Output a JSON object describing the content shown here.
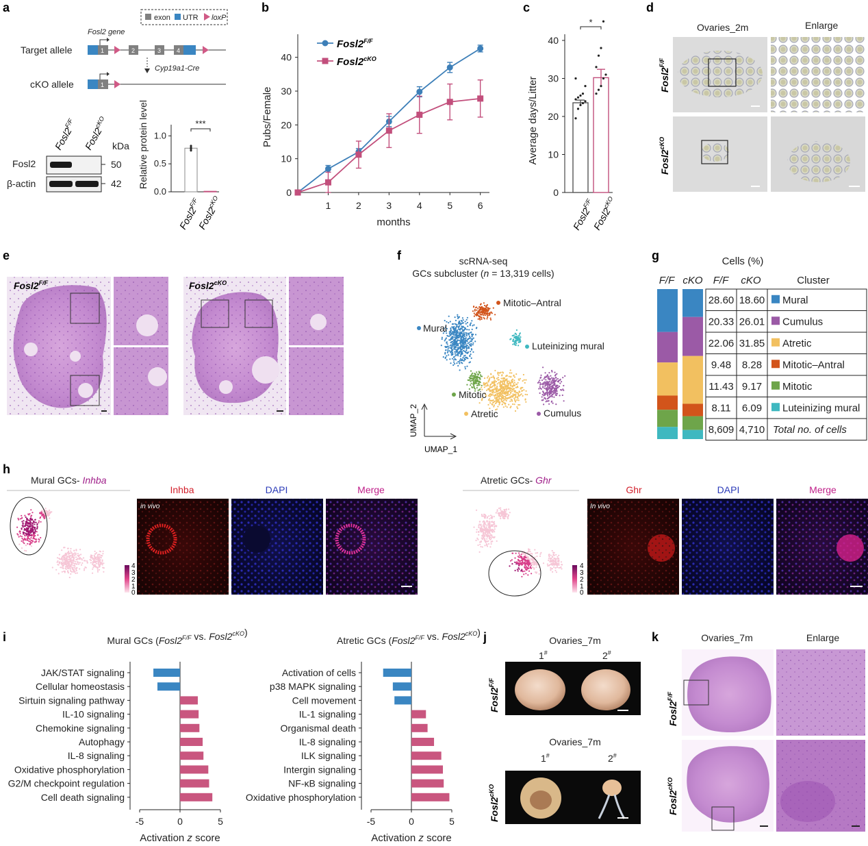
{
  "panels": {
    "a": "a",
    "b": "b",
    "c": "c",
    "d": "d",
    "e": "e",
    "f": "f",
    "g": "g",
    "h": "h",
    "i": "i",
    "j": "j",
    "k": "k"
  },
  "a": {
    "legend": {
      "exon": "exon",
      "utr": "UTR",
      "loxp": "loxP"
    },
    "gene_label": "Fosl2 gene",
    "target_allele": "Target allele",
    "cko_allele": "cKO allele",
    "cre": "Cyp19a1-Cre",
    "exons": [
      "1",
      "2",
      "3",
      "4"
    ],
    "blot": {
      "col1": "Fosl2",
      "col1_sup": "F/F",
      "col2": "Fosl2",
      "col2_sup": "cKO",
      "kda": "kDa",
      "rows": [
        {
          "name": "Fosl2",
          "size": "50"
        },
        {
          "name": "β-actin",
          "size": "42"
        }
      ]
    },
    "bar": {
      "ylabel": "Relative protein level",
      "yticks": [
        "0.0",
        "0.5",
        "1.0"
      ],
      "signif": "***",
      "cat1": "Fosl2",
      "cat1_sup": "F/F",
      "cat2": "Fosl2",
      "cat2_sup": "cKO",
      "values": [
        0.78,
        0.01
      ]
    }
  },
  "chart_data": [
    {
      "type": "line",
      "panel": "b",
      "xlabel": "months",
      "ylabel": "Pubs/Female",
      "x": [
        0,
        1,
        2,
        3,
        4,
        5,
        6
      ],
      "xtick_labels": [
        "1",
        "2",
        "3",
        "4",
        "5",
        "6"
      ],
      "ylim": [
        0,
        45
      ],
      "yticks": [
        "0",
        "10",
        "20",
        "30",
        "40"
      ],
      "series": [
        {
          "name": "Fosl2",
          "sup": "F/F",
          "color": "#3d7fb8",
          "values": [
            0,
            7,
            12,
            21,
            29.8,
            37,
            42.6
          ],
          "err": [
            0,
            1,
            1,
            1.5,
            1.5,
            1.5,
            1
          ]
        },
        {
          "name": "Fosl2",
          "sup": "cKO",
          "color": "#c24f7c",
          "values": [
            0,
            3,
            11.2,
            18.3,
            23,
            26.8,
            27.8
          ],
          "err": [
            0,
            3,
            4,
            5,
            5.5,
            5.3,
            5.5
          ]
        }
      ]
    },
    {
      "type": "bar",
      "panel": "c",
      "ylabel": "Average days/Litter",
      "ylim": [
        0,
        40
      ],
      "yticks": [
        "0",
        "10",
        "20",
        "30",
        "40"
      ],
      "signif": "*",
      "categories": [
        "Fosl2 F/F",
        "Fosl2 cKO"
      ],
      "cat_labels": [
        {
          "name": "Fosl2",
          "sup": "F/F"
        },
        {
          "name": "Fosl2",
          "sup": "cKO"
        }
      ],
      "values": [
        23.6,
        30.2
      ],
      "err": [
        0.7,
        2.2
      ]
    },
    {
      "type": "bar",
      "panel": "i-left",
      "title_pre": "Mural GCs (",
      "title_a": "Fosl2",
      "title_a_sup": "F/F",
      "title_mid": " vs. ",
      "title_b": "Fosl2",
      "title_b_sup": "cKO",
      "title_post": ")",
      "xlabel_pre": "Activation ",
      "xlabel_z": "z",
      "xlabel_post": " score",
      "xlim": [
        -5,
        5
      ],
      "xticks": [
        "-5",
        "0",
        "5"
      ],
      "categories": [
        "JAK/STAT signaling",
        "Cellular homeostasis",
        "Sirtuin signaling pathway",
        "IL-10 signaling",
        "Chemokine signaling",
        "Autophagy",
        "IL-8 signaling",
        "Oxidative phosphorylation",
        "G2/M checkpoint regulation",
        "Cell death signaling"
      ],
      "values": [
        -3.3,
        -2.8,
        2.2,
        2.3,
        2.4,
        2.8,
        2.9,
        3.5,
        3.6,
        4.0
      ]
    },
    {
      "type": "bar",
      "panel": "i-right",
      "title_pre": "Atretic GCs (",
      "title_a": "Fosl2",
      "title_a_sup": "F/F",
      "title_mid": " vs. ",
      "title_b": "Fosl2",
      "title_b_sup": "cKO",
      "title_post": ")",
      "xlabel_pre": "Activation ",
      "xlabel_z": "z",
      "xlabel_post": " score",
      "xlim": [
        -5,
        5
      ],
      "xticks": [
        "-5",
        "0",
        "5"
      ],
      "categories": [
        "Activation of cells",
        "p38 MAPK signaling",
        "Cell movement",
        "IL-1 signaling",
        "Organismal death",
        "IL-8 signaling",
        "ILK signaling",
        "Intergin signaling",
        "NF-κB signaling",
        "Oxidative phosphorylation"
      ],
      "values": [
        -3.5,
        -2.3,
        -2.1,
        1.8,
        2.0,
        2.8,
        3.7,
        3.9,
        4.0,
        4.7
      ]
    },
    {
      "type": "table",
      "panel": "g",
      "title": "Cells (%)",
      "headers": [
        "F/F",
        "cKO",
        "F/F",
        "cKO",
        "Cluster"
      ],
      "rows": [
        {
          "ff": "28.60",
          "cko": "18.60",
          "cluster": "Mural",
          "color": "#3a86c2"
        },
        {
          "ff": "20.33",
          "cko": "26.01",
          "cluster": "Cumulus",
          "color": "#9b5aa6"
        },
        {
          "ff": "22.06",
          "cko": "31.85",
          "cluster": "Atretic",
          "color": "#f2c060"
        },
        {
          "ff": "9.48",
          "cko": "8.28",
          "cluster": "Mitotic–Antral",
          "color": "#d2541b"
        },
        {
          "ff": "11.43",
          "cko": "9.17",
          "cluster": "Mitotic",
          "color": "#6ea54a"
        },
        {
          "ff": "8.11",
          "cko": "6.09",
          "cluster": "Luteinizing mural",
          "color": "#3fb8c0"
        }
      ],
      "total": {
        "ff": "8,609",
        "cko": "4,710",
        "label": "Total no. of cells"
      }
    }
  ],
  "d": {
    "col1": "Ovaries_2m",
    "col2": "Enlarge",
    "row1": "Fosl2",
    "row1_sup": "F/F",
    "row2": "Fosl2",
    "row2_sup": "cKO"
  },
  "e": {
    "label1": "Fosl2",
    "label1_sup": "F/F",
    "label2": "Fosl2",
    "label2_sup": "cKO"
  },
  "f": {
    "title1": "scRNA-seq",
    "title2_pre": "GCs subcluster (",
    "title2_n": "n",
    "title2_post": " = 13,319 cells)",
    "clusters": [
      "Mitotic–Antral",
      "Mural",
      "Luteinizing mural",
      "Mitotic",
      "Atretic",
      "Cumulus"
    ],
    "axis_y": "UMAP_2",
    "axis_x": "UMAP_1"
  },
  "h": {
    "left_title": "Mural GCs- ",
    "left_gene": "Inhba",
    "right_title": "Atretic GCs- ",
    "right_gene": "Ghr",
    "channels_left": [
      "Inhba",
      "DAPI",
      "Merge"
    ],
    "channels_right": [
      "Ghr",
      "DAPI",
      "Merge"
    ],
    "invivo": "in vivo",
    "invivo2": "In vivo",
    "scale": [
      "4",
      "3",
      "2",
      "1",
      "0"
    ]
  },
  "j": {
    "title1": "Ovaries_7m",
    "title2": "Ovaries_7m",
    "s1": "1",
    "s2": "2",
    "hash": "#",
    "row1": "Fosl2",
    "row1_sup": "F/F",
    "row2": "Fosl2",
    "row2_sup": "cKO"
  },
  "k": {
    "col1": "Ovaries_7m",
    "col2": "Enlarge",
    "row1": "Fosl2",
    "row1_sup": "F/F",
    "row2": "Fosl2",
    "row2_sup": "cKO"
  }
}
